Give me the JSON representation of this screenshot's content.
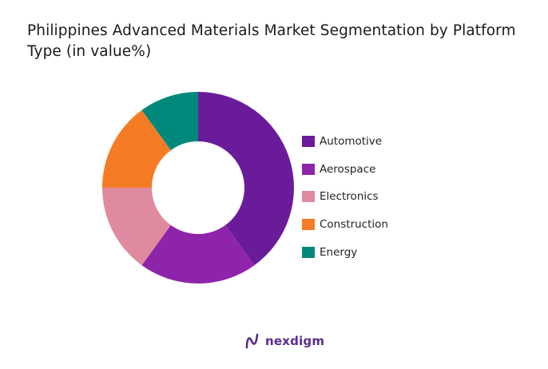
{
  "chart_data": {
    "type": "pie",
    "title": "Philippines Advanced Materials Market Segmentation by Platform Type (in value%)",
    "donut": true,
    "categories": [
      "Automotive",
      "Aerospace",
      "Electronics",
      "Construction",
      "Energy"
    ],
    "values": [
      40,
      20,
      15,
      15,
      10
    ],
    "colors": [
      "#6a1b9a",
      "#8e24aa",
      "#e08a9f",
      "#f57c24",
      "#00897b"
    ],
    "legend": "right"
  },
  "brand": {
    "name": "nexdigm"
  }
}
